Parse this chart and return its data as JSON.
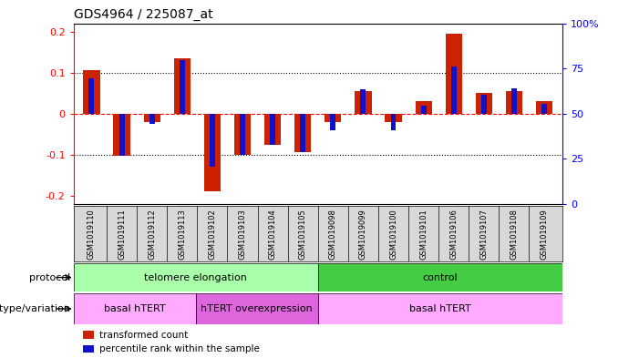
{
  "title": "GDS4964 / 225087_at",
  "samples": [
    "GSM1019110",
    "GSM1019111",
    "GSM1019112",
    "GSM1019113",
    "GSM1019102",
    "GSM1019103",
    "GSM1019104",
    "GSM1019105",
    "GSM1019098",
    "GSM1019099",
    "GSM1019100",
    "GSM1019101",
    "GSM1019106",
    "GSM1019107",
    "GSM1019108",
    "GSM1019109"
  ],
  "red_values": [
    0.105,
    -0.103,
    -0.02,
    0.135,
    -0.19,
    -0.1,
    -0.075,
    -0.093,
    -0.02,
    0.055,
    -0.02,
    0.03,
    0.195,
    0.05,
    0.055,
    0.03
  ],
  "blue_values": [
    0.085,
    -0.103,
    -0.025,
    0.13,
    -0.13,
    -0.1,
    -0.075,
    -0.093,
    -0.04,
    0.06,
    -0.04,
    0.02,
    0.115,
    0.045,
    0.062,
    0.025
  ],
  "ylim": [
    -0.22,
    0.22
  ],
  "yticks": [
    -0.2,
    -0.1,
    0.0,
    0.1,
    0.2
  ],
  "ytick_labels": [
    "-0.2",
    "-0.1",
    "0",
    "0.1",
    "0.2"
  ],
  "right_yticks_pct": [
    0,
    25,
    50,
    75,
    100
  ],
  "right_ytick_labels": [
    "0",
    "25",
    "50",
    "75",
    "100%"
  ],
  "hline_dotted": [
    0.1,
    -0.1
  ],
  "hline_dashed_red": 0.0,
  "protocol_groups": [
    {
      "label": "telomere elongation",
      "start": 0,
      "end": 8,
      "color": "#aaffaa"
    },
    {
      "label": "control",
      "start": 8,
      "end": 16,
      "color": "#44cc44"
    }
  ],
  "genotype_groups": [
    {
      "label": "basal hTERT",
      "start": 0,
      "end": 4,
      "color": "#ffaaff"
    },
    {
      "label": "hTERT overexpression",
      "start": 4,
      "end": 8,
      "color": "#dd66dd"
    },
    {
      "label": "basal hTERT",
      "start": 8,
      "end": 16,
      "color": "#ffaaff"
    }
  ],
  "red_color": "#cc2200",
  "blue_color": "#1111cc",
  "red_bar_width": 0.55,
  "blue_bar_width": 0.18,
  "legend_items": [
    {
      "color": "#cc2200",
      "label": "transformed count"
    },
    {
      "color": "#1111cc",
      "label": "percentile rank within the sample"
    }
  ],
  "label_protocol": "protocol",
  "label_genotype": "genotype/variation",
  "xlabels_bg": "#d8d8d8",
  "plot_bg": "#ffffff"
}
